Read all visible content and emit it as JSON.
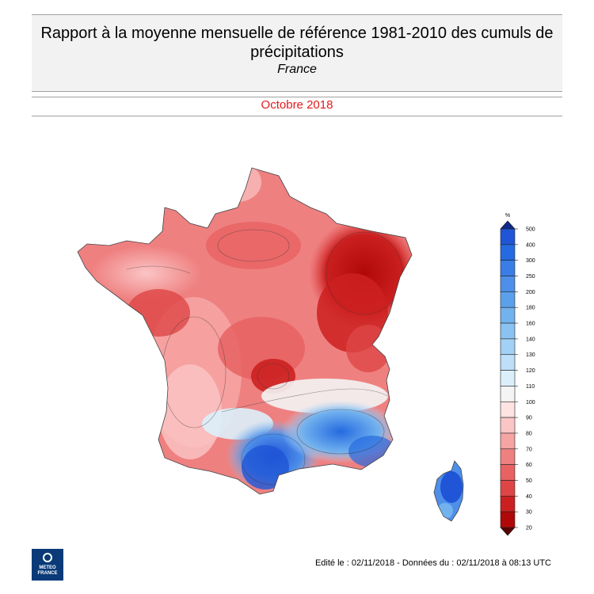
{
  "header": {
    "title": "Rapport à la moyenne mensuelle de référence 1981-2010 des cumuls de précipitations",
    "region": "France",
    "period": "Octobre 2018"
  },
  "legend": {
    "unit": "%",
    "levels": [
      {
        "value": "500",
        "color": "#1a3fb5"
      },
      {
        "value": "400",
        "color": "#1f55d6"
      },
      {
        "value": "300",
        "color": "#256ae0"
      },
      {
        "value": "250",
        "color": "#3a7de6"
      },
      {
        "value": "200",
        "color": "#4e8fe9"
      },
      {
        "value": "180",
        "color": "#5ba0ea"
      },
      {
        "value": "160",
        "color": "#72b2ee"
      },
      {
        "value": "140",
        "color": "#8ac2f2"
      },
      {
        "value": "130",
        "color": "#a3d1f5"
      },
      {
        "value": "120",
        "color": "#bddff8"
      },
      {
        "value": "110",
        "color": "#dbeffb"
      },
      {
        "value": "100",
        "color": "#f4f4f4"
      },
      {
        "value": "90",
        "color": "#ffe2e2"
      },
      {
        "value": "80",
        "color": "#fbc5c5"
      },
      {
        "value": "70",
        "color": "#f6a3a3"
      },
      {
        "value": "60",
        "color": "#ef8080"
      },
      {
        "value": "50",
        "color": "#e86262"
      },
      {
        "value": "40",
        "color": "#de4646"
      },
      {
        "value": "30",
        "color": "#cc2020"
      },
      {
        "value": "20",
        "color": "#b00808"
      }
    ]
  },
  "footer": {
    "edition": "Edité le : 02/11/2018 - Données du : 02/11/2018 à 08:13 UTC"
  },
  "logo": {
    "line1": "METEO",
    "line2": "FRANCE"
  }
}
